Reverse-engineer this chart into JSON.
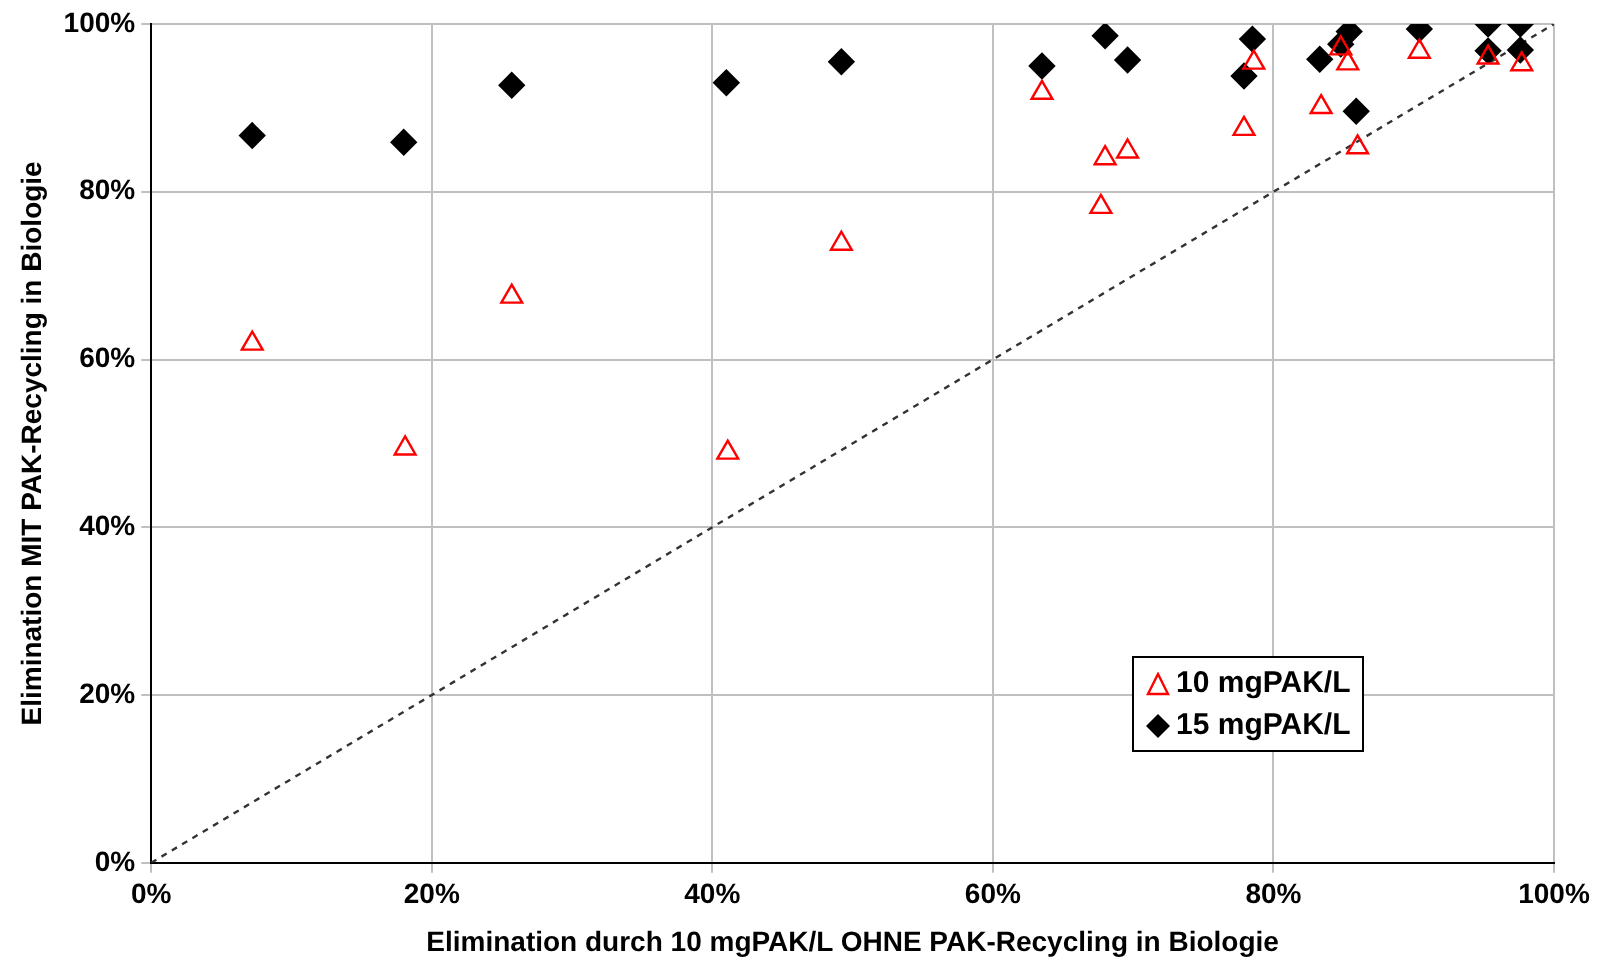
{
  "chart_data": {
    "type": "scatter",
    "xlabel": "Elimination durch 10 mgPAK/L OHNE PAK-Recycling in Biologie",
    "ylabel": "Elimination MIT PAK-Recycling in Biologie",
    "xlim": [
      0,
      100
    ],
    "ylim": [
      0,
      100
    ],
    "xticks": [
      {
        "value": 0,
        "label": "0%"
      },
      {
        "value": 20,
        "label": "20%"
      },
      {
        "value": 40,
        "label": "40%"
      },
      {
        "value": 60,
        "label": "60%"
      },
      {
        "value": 80,
        "label": "80%"
      },
      {
        "value": 100,
        "label": "100%"
      }
    ],
    "yticks": [
      {
        "value": 0,
        "label": "0%"
      },
      {
        "value": 20,
        "label": "20%"
      },
      {
        "value": 40,
        "label": "40%"
      },
      {
        "value": 60,
        "label": "60%"
      },
      {
        "value": 80,
        "label": "80%"
      },
      {
        "value": 100,
        "label": "100%"
      }
    ],
    "grid": true,
    "legend": "bottom right",
    "series": [
      {
        "name": "10 mgPAK/L",
        "color": "#ff0000",
        "marker": "triangle",
        "x": [
          7.2,
          18.1,
          25.7,
          41.1,
          49.2,
          63.5,
          68.0,
          69.6,
          67.7,
          78.6,
          77.9,
          83.4,
          85.3,
          84.8,
          86.0,
          90.4,
          95.3,
          97.7
        ],
        "values": [
          61.9,
          49.4,
          67.5,
          48.9,
          73.8,
          91.8,
          84.0,
          84.8,
          78.2,
          95.4,
          87.5,
          90.1,
          95.3,
          97.1,
          85.3,
          96.7,
          96.0,
          95.2
        ]
      },
      {
        "name": "15 mgPAK/L",
        "color": "#000000",
        "marker": "diamond",
        "x": [
          7.2,
          18.0,
          25.7,
          41.0,
          49.2,
          63.5,
          68.0,
          69.6,
          78.5,
          77.9,
          83.3,
          85.4,
          84.8,
          85.9,
          90.4,
          95.3,
          97.6,
          95.3,
          97.6
        ],
        "values": [
          86.7,
          85.9,
          92.7,
          93.0,
          95.5,
          95.0,
          98.6,
          95.7,
          98.2,
          93.8,
          95.8,
          99.1,
          97.6,
          89.6,
          99.4,
          100,
          100,
          96.8,
          96.9
        ]
      },
      {
        "type": "line",
        "color": "#333333",
        "line_style": "dashed",
        "marker": "none",
        "x": [
          0,
          100
        ],
        "values": [
          0,
          100
        ]
      }
    ]
  }
}
